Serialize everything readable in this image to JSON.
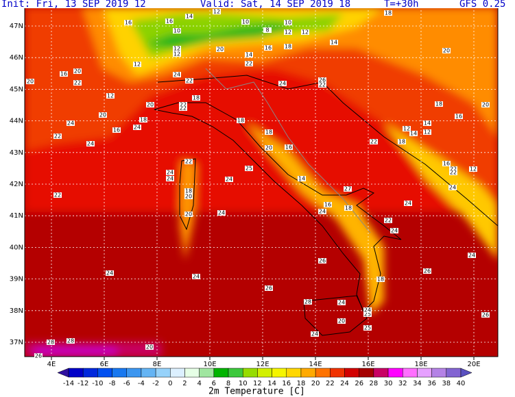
{
  "header": {
    "init": "Init: Fri, 13 SEP 2019 12",
    "valid": "Valid: Sat, 14 SEP 2019 18",
    "lead": "T=+30h",
    "model": "GFS 0.25"
  },
  "lat_ticks": [
    {
      "value": 47,
      "label": "47N"
    },
    {
      "value": 46,
      "label": "46N"
    },
    {
      "value": 45,
      "label": "45N"
    },
    {
      "value": 44,
      "label": "44N"
    },
    {
      "value": 43,
      "label": "43N"
    },
    {
      "value": 42,
      "label": "42N"
    },
    {
      "value": 41,
      "label": "41N"
    },
    {
      "value": 40,
      "label": "40N"
    },
    {
      "value": 39,
      "label": "39N"
    },
    {
      "value": 38,
      "label": "38N"
    },
    {
      "value": 37,
      "label": "37N"
    }
  ],
  "lon_ticks": [
    {
      "value": 4,
      "label": "4E"
    },
    {
      "value": 6,
      "label": "6E"
    },
    {
      "value": 8,
      "label": "8E"
    },
    {
      "value": 10,
      "label": "10E"
    },
    {
      "value": 12,
      "label": "12E"
    },
    {
      "value": 14,
      "label": "14E"
    },
    {
      "value": 16,
      "label": "16E"
    },
    {
      "value": 18,
      "label": "18E"
    },
    {
      "value": 20,
      "label": "20E"
    }
  ],
  "colorbar": {
    "title": "2m Temperature [C]",
    "ticks": [
      -14,
      -12,
      -10,
      -8,
      -6,
      -4,
      -2,
      0,
      2,
      4,
      6,
      8,
      10,
      12,
      14,
      16,
      18,
      20,
      22,
      24,
      26,
      28,
      30,
      32,
      34,
      36,
      38,
      40
    ],
    "colors": [
      "#3010a0",
      "#0000c8",
      "#0028dc",
      "#0050f0",
      "#1878f0",
      "#3c96f0",
      "#64b4f4",
      "#96d2fa",
      "#dcf0ff",
      "#e6ffe6",
      "#a0e6a0",
      "#00b400",
      "#3cc83c",
      "#96dc00",
      "#d2f000",
      "#f5f500",
      "#ffd700",
      "#ffaa00",
      "#ff7300",
      "#f03200",
      "#d20000",
      "#a50000",
      "#c80064",
      "#ff00ff",
      "#ff6eff",
      "#e6a0ff",
      "#b482e6",
      "#8264d2",
      "#5a50c0"
    ]
  },
  "map_labels": [
    "16",
    "16",
    "14",
    "12",
    "10",
    "10",
    "10",
    "12",
    "12",
    "8",
    "18",
    "14",
    "18",
    "16",
    "20",
    "14",
    "22",
    "12",
    "12",
    "12",
    "20",
    "16",
    "20",
    "22",
    "20",
    "12",
    "24",
    "22",
    "26",
    "22",
    "24",
    "18",
    "20",
    "22",
    "22",
    "18",
    "20",
    "20",
    "16",
    "24",
    "18",
    "24",
    "16",
    "14",
    "12",
    "14",
    "12",
    "18",
    "22",
    "24",
    "18",
    "20",
    "16",
    "22",
    "18",
    "22",
    "24",
    "24",
    "25",
    "24",
    "16",
    "22",
    "22",
    "12",
    "14",
    "24",
    "18",
    "20",
    "22",
    "27",
    "16",
    "24",
    "24",
    "18",
    "24",
    "20",
    "22",
    "24",
    "26",
    "24",
    "26",
    "18",
    "24",
    "26",
    "28",
    "24",
    "25",
    "24",
    "20",
    "26",
    "24",
    "28",
    "28",
    "25",
    "24",
    "20",
    "26"
  ]
}
